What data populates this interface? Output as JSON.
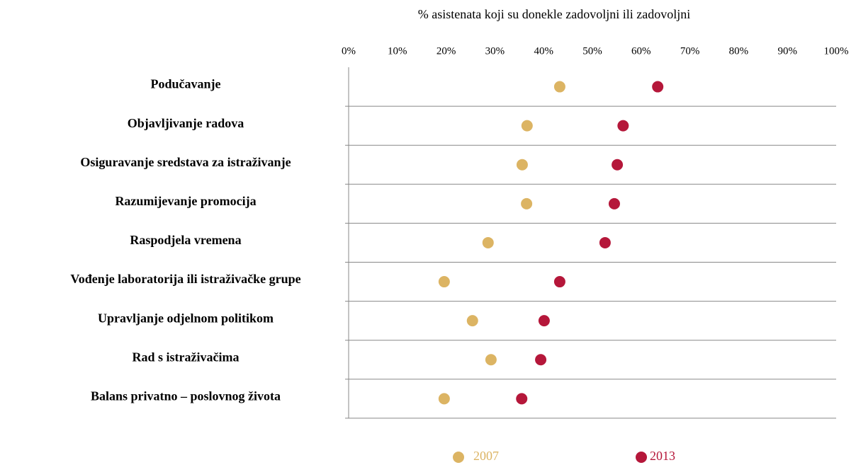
{
  "chart_data": {
    "type": "dot",
    "title": "% asistenata koji su donekle zadovoljni ili zadovoljni",
    "categories": [
      "Podučavanje",
      "Objavljivanje  radova",
      "Osiguravanje sredstava za istraživanje",
      "Razumijevanje promocija",
      "Raspodjela vremena",
      "Vođenje laboratorija  ili istraživačke grupe",
      "Upravljanje odjelnom politikom",
      "Rad s istraživačima",
      "Balans privatno – poslovnog života"
    ],
    "series": [
      {
        "name": "2007",
        "color": "#dcb463",
        "values": [
          43.3,
          36.6,
          35.6,
          36.5,
          28.6,
          19.6,
          25.4,
          29.2,
          19.6
        ]
      },
      {
        "name": "2013",
        "color": "#b5173a",
        "values": [
          63.4,
          56.3,
          55.1,
          54.5,
          52.6,
          43.3,
          40.1,
          39.4,
          35.5
        ]
      }
    ],
    "xlim": [
      0,
      100
    ],
    "xticks": [
      {
        "value": 0,
        "label": "0%"
      },
      {
        "value": 10,
        "label": "10%"
      },
      {
        "value": 20,
        "label": "20%"
      },
      {
        "value": 30,
        "label": "30%"
      },
      {
        "value": 40,
        "label": "40%"
      },
      {
        "value": 50,
        "label": "50%"
      },
      {
        "value": 60,
        "label": "60%"
      },
      {
        "value": 70,
        "label": "70%"
      },
      {
        "value": 80,
        "label": "80%"
      },
      {
        "value": 90,
        "label": "90%"
      },
      {
        "value": 100,
        "label": "100%"
      }
    ],
    "grid": true,
    "legend": "bottom"
  }
}
